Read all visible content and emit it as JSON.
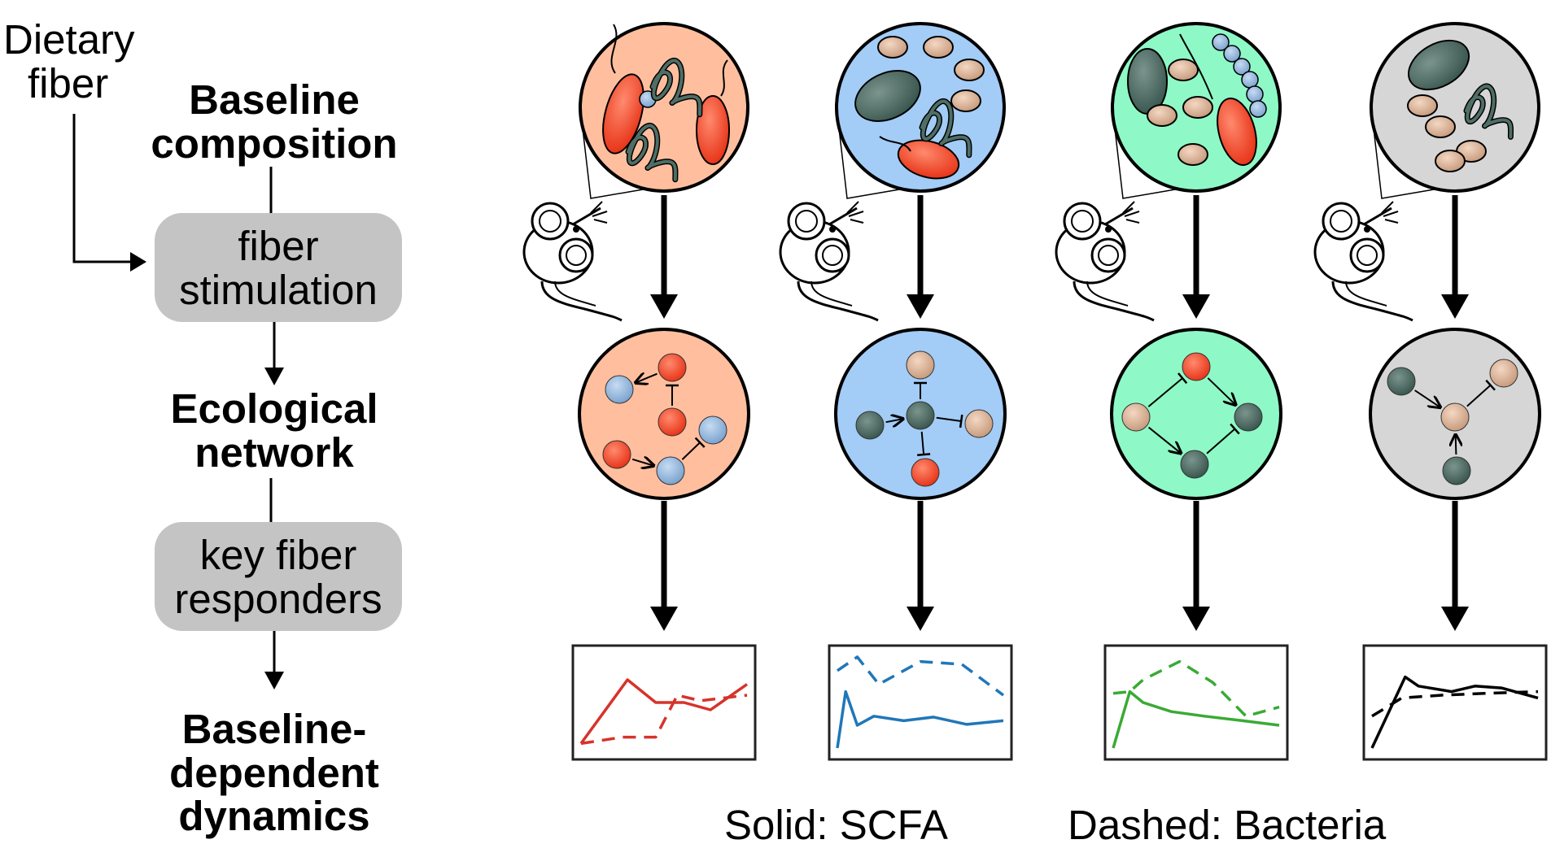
{
  "flow": {
    "dietary_fiber": "Dietary fiber",
    "dietary_line1": "Dietary",
    "dietary_line2": "fiber",
    "baseline_line1": "Baseline",
    "baseline_line2": "composition",
    "stim_line1": "fiber",
    "stim_line2": "stimulation",
    "eco_line1": "Ecological",
    "eco_line2": "network",
    "key_line1": "key fiber",
    "key_line2": "responders",
    "dyn_line1": "Baseline-",
    "dyn_line2": "dependent",
    "dyn_line3": "dynamics"
  },
  "legend": {
    "solid": "Solid: SCFA",
    "dashed": "Dashed: Bacteria"
  },
  "colors": {
    "salmon": "#ffbf9f",
    "blue": "#a3ccf7",
    "green": "#8ef9c6",
    "gray": "#d6d6d6",
    "box_gray": "#c4c4c4",
    "bacteria_red": "#f04a2a",
    "bacteria_tan": "#dcb59a",
    "bacteria_dark": "#4e6e66",
    "bacteria_lightblue": "#92b6dd",
    "line_red": "#d6332b",
    "line_blue": "#1f77b8",
    "line_green": "#3aaa35",
    "line_black": "#000000"
  },
  "communities": [
    "salmon-community",
    "blue-community",
    "green-community",
    "gray-community"
  ],
  "chart_data": [
    {
      "type": "line",
      "series": [
        {
          "style": "solid",
          "color": "#d6332b",
          "values": [
            [
              0,
              0.05
            ],
            [
              0.28,
              0.75
            ],
            [
              0.45,
              0.5
            ],
            [
              0.62,
              0.5
            ],
            [
              0.78,
              0.42
            ],
            [
              1,
              0.7
            ]
          ]
        },
        {
          "style": "dashed",
          "color": "#d6332b",
          "values": [
            [
              0,
              0.05
            ],
            [
              0.25,
              0.12
            ],
            [
              0.45,
              0.12
            ],
            [
              0.58,
              0.58
            ],
            [
              0.72,
              0.52
            ],
            [
              1,
              0.58
            ]
          ]
        }
      ],
      "ylim": [
        0,
        1
      ]
    },
    {
      "type": "line",
      "series": [
        {
          "style": "solid",
          "color": "#1f77b8",
          "values": [
            [
              0,
              0
            ],
            [
              0.05,
              0.62
            ],
            [
              0.12,
              0.25
            ],
            [
              0.22,
              0.35
            ],
            [
              0.4,
              0.3
            ],
            [
              0.58,
              0.34
            ],
            [
              0.78,
              0.26
            ],
            [
              1,
              0.3
            ]
          ]
        },
        {
          "style": "dashed",
          "color": "#1f77b8",
          "values": [
            [
              0,
              0.85
            ],
            [
              0.12,
              1.0
            ],
            [
              0.25,
              0.7
            ],
            [
              0.5,
              0.95
            ],
            [
              0.75,
              0.92
            ],
            [
              1,
              0.58
            ]
          ]
        }
      ],
      "ylim": [
        0,
        1
      ]
    },
    {
      "type": "line",
      "series": [
        {
          "style": "solid",
          "color": "#3aaa35",
          "values": [
            [
              0,
              0
            ],
            [
              0.1,
              0.62
            ],
            [
              0.18,
              0.5
            ],
            [
              0.35,
              0.4
            ],
            [
              0.55,
              0.35
            ],
            [
              0.78,
              0.3
            ],
            [
              1,
              0.25
            ]
          ]
        },
        {
          "style": "dashed",
          "color": "#3aaa35",
          "values": [
            [
              0,
              0.6
            ],
            [
              0.1,
              0.62
            ],
            [
              0.18,
              0.75
            ],
            [
              0.4,
              0.95
            ],
            [
              0.6,
              0.72
            ],
            [
              0.8,
              0.35
            ],
            [
              1,
              0.45
            ]
          ]
        }
      ],
      "ylim": [
        0,
        1
      ]
    },
    {
      "type": "line",
      "series": [
        {
          "style": "solid",
          "color": "#000000",
          "values": [
            [
              0,
              0
            ],
            [
              0.2,
              0.78
            ],
            [
              0.28,
              0.68
            ],
            [
              0.48,
              0.62
            ],
            [
              0.62,
              0.68
            ],
            [
              0.78,
              0.66
            ],
            [
              1,
              0.55
            ]
          ]
        },
        {
          "style": "dashed",
          "color": "#000000",
          "values": [
            [
              0,
              0.35
            ],
            [
              0.18,
              0.55
            ],
            [
              0.42,
              0.58
            ],
            [
              0.68,
              0.6
            ],
            [
              1,
              0.62
            ]
          ]
        }
      ],
      "ylim": [
        0,
        1
      ]
    }
  ]
}
